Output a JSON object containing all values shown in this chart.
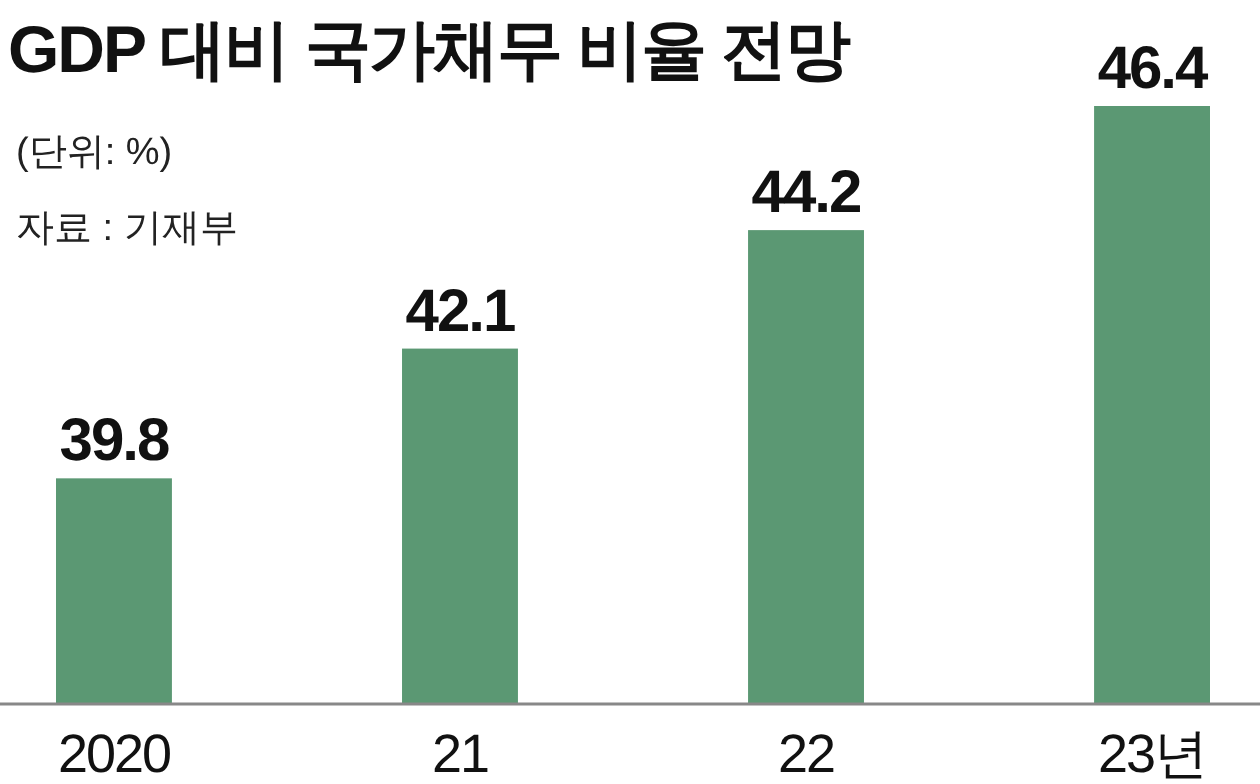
{
  "chart_data": {
    "type": "bar",
    "title": "GDP 대비 국가채무 비율 전망",
    "annotations": [
      "(단위: %)",
      "자료 : 기재부"
    ],
    "categories": [
      "2020",
      "21",
      "22",
      "23년"
    ],
    "values": [
      39.8,
      42.1,
      44.2,
      46.4
    ],
    "color": "#5b9873",
    "ylim": [
      35.8,
      46.4
    ],
    "data_labels": true
  }
}
